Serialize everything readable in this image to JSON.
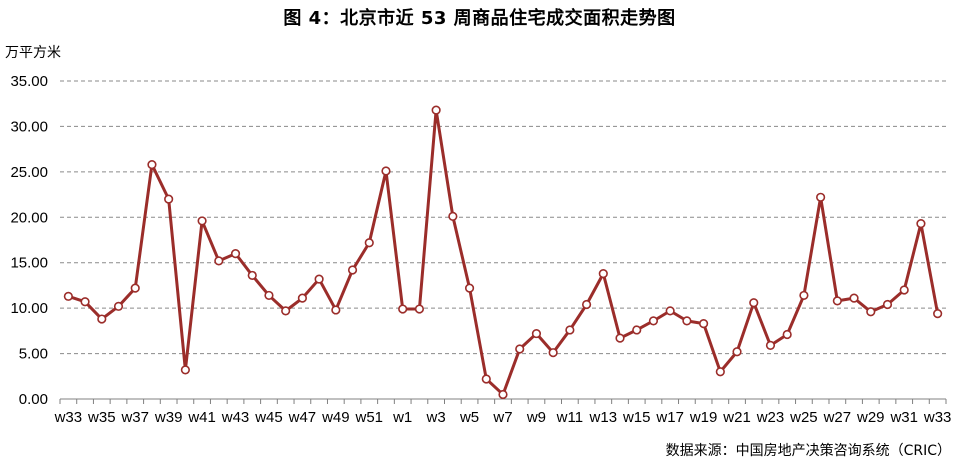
{
  "chart_data": {
    "type": "line",
    "title": "图 4：北京市近 53 周商品住宅成交面积走势图",
    "ylabel": "万平方米",
    "xlabel": "",
    "ylim": [
      0,
      35
    ],
    "yticks": [
      "0.00",
      "5.00",
      "10.00",
      "15.00",
      "20.00",
      "25.00",
      "30.00",
      "35.00"
    ],
    "grid": true,
    "line_color": "#9B2D2A",
    "categories": [
      "w33",
      "w34",
      "w35",
      "w36",
      "w37",
      "w38",
      "w39",
      "w40",
      "w41",
      "w42",
      "w43",
      "w44",
      "w45",
      "w46",
      "w47",
      "w48",
      "w49",
      "w50",
      "w51",
      "w52",
      "w1",
      "w2",
      "w3",
      "w4",
      "w5",
      "w6",
      "w7",
      "w8",
      "w9",
      "w10",
      "w11",
      "w12",
      "w13",
      "w14",
      "w15",
      "w16",
      "w17",
      "w18",
      "w19",
      "w20",
      "w21",
      "w22",
      "w23",
      "w24",
      "w25",
      "w26",
      "w27",
      "w28",
      "w29",
      "w30",
      "w31",
      "w32",
      "w33"
    ],
    "xtick_labels": [
      "w33",
      "w35",
      "w37",
      "w39",
      "w41",
      "w43",
      "w45",
      "w47",
      "w49",
      "w51",
      "w1",
      "w3",
      "w5",
      "w7",
      "w9",
      "w11",
      "w13",
      "w15",
      "w17",
      "w19",
      "w21",
      "w23",
      "w25",
      "w27",
      "w29",
      "w31",
      "w33"
    ],
    "values": [
      11.3,
      10.7,
      8.8,
      10.2,
      12.2,
      25.8,
      22.0,
      3.2,
      19.6,
      15.2,
      16.0,
      13.6,
      11.4,
      9.7,
      11.1,
      13.2,
      9.8,
      14.2,
      17.2,
      25.1,
      9.9,
      9.9,
      31.8,
      20.1,
      12.2,
      2.2,
      0.5,
      5.5,
      7.2,
      5.1,
      7.6,
      10.4,
      13.8,
      6.7,
      7.6,
      8.6,
      9.7,
      8.6,
      8.3,
      3.0,
      5.2,
      10.6,
      5.9,
      7.1,
      11.4,
      22.2,
      10.8,
      11.1,
      9.6,
      10.4,
      12.0,
      19.3,
      9.4
    ]
  },
  "source_text": "数据来源：中国房地产决策咨询系统（CRIC）"
}
